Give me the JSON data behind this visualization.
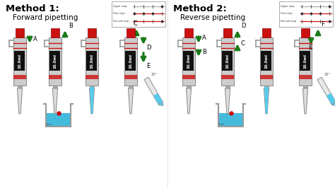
{
  "title1": "Method 1:",
  "subtitle1": "Forward pipetting",
  "title2": "Method 2:",
  "subtitle2": "Reverse pipetting",
  "bg_color": "#f0f0f0",
  "body_color": "#cccccc",
  "body_edge": "#888888",
  "label_bg": "#111111",
  "label_text": "#ffffff",
  "plunger_color": "#cc1111",
  "plunger_edge": "#880000",
  "red_line": "#cc1111",
  "arrow_color": "#1a7a1a",
  "liquid_color": "#55ccee",
  "beaker_liq": "#44bbdd",
  "hook_color": "#999999",
  "tip_color": "#dddddd",
  "tip_edge": "#888888",
  "stop_box_bg": "#ffffff",
  "stop_box_edge": "#aaaaaa",
  "gray_line": "#aaaaaa",
  "red_stop_line": "#cc1111",
  "pipette_label": "10.0ml",
  "stop_labels": [
    "Upper stop",
    "First stop",
    "Second stop"
  ],
  "white": "#ffffff",
  "dark_gray_tip": "#888888"
}
